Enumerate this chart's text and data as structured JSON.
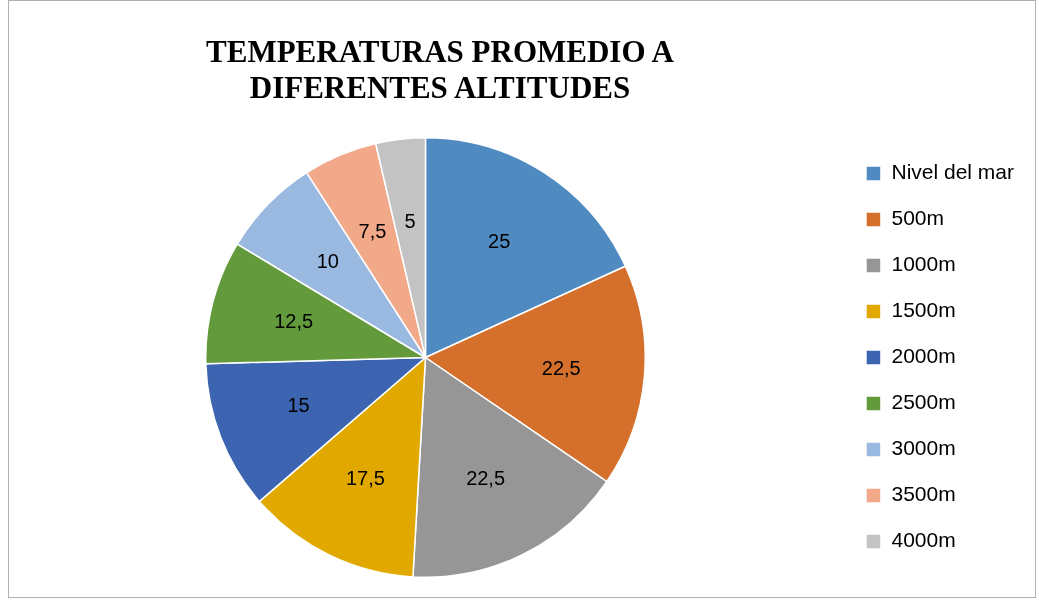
{
  "chart_data": {
    "type": "pie",
    "title": "TEMPERATURAS PROMEDIO A DIFERENTES ALTITUDES",
    "categories": [
      "Nivel del mar",
      "500m",
      "1000m",
      "1500m",
      "2000m",
      "2500m",
      "3000m",
      "3500m",
      "4000m"
    ],
    "values": [
      25,
      22.5,
      22.5,
      17.5,
      15,
      12.5,
      10,
      7.5,
      5
    ],
    "value_labels": [
      "25",
      "22,5",
      "22,5",
      "17,5",
      "15",
      "12,5",
      "10",
      "7,5",
      "5"
    ],
    "colors": [
      "#4f8bc0",
      "#d46f2c",
      "#969696",
      "#e1a900",
      "#3d64b0",
      "#629a3c",
      "#9ab9e0",
      "#f1a98a",
      "#c3c3c3"
    ],
    "legend": "right"
  }
}
